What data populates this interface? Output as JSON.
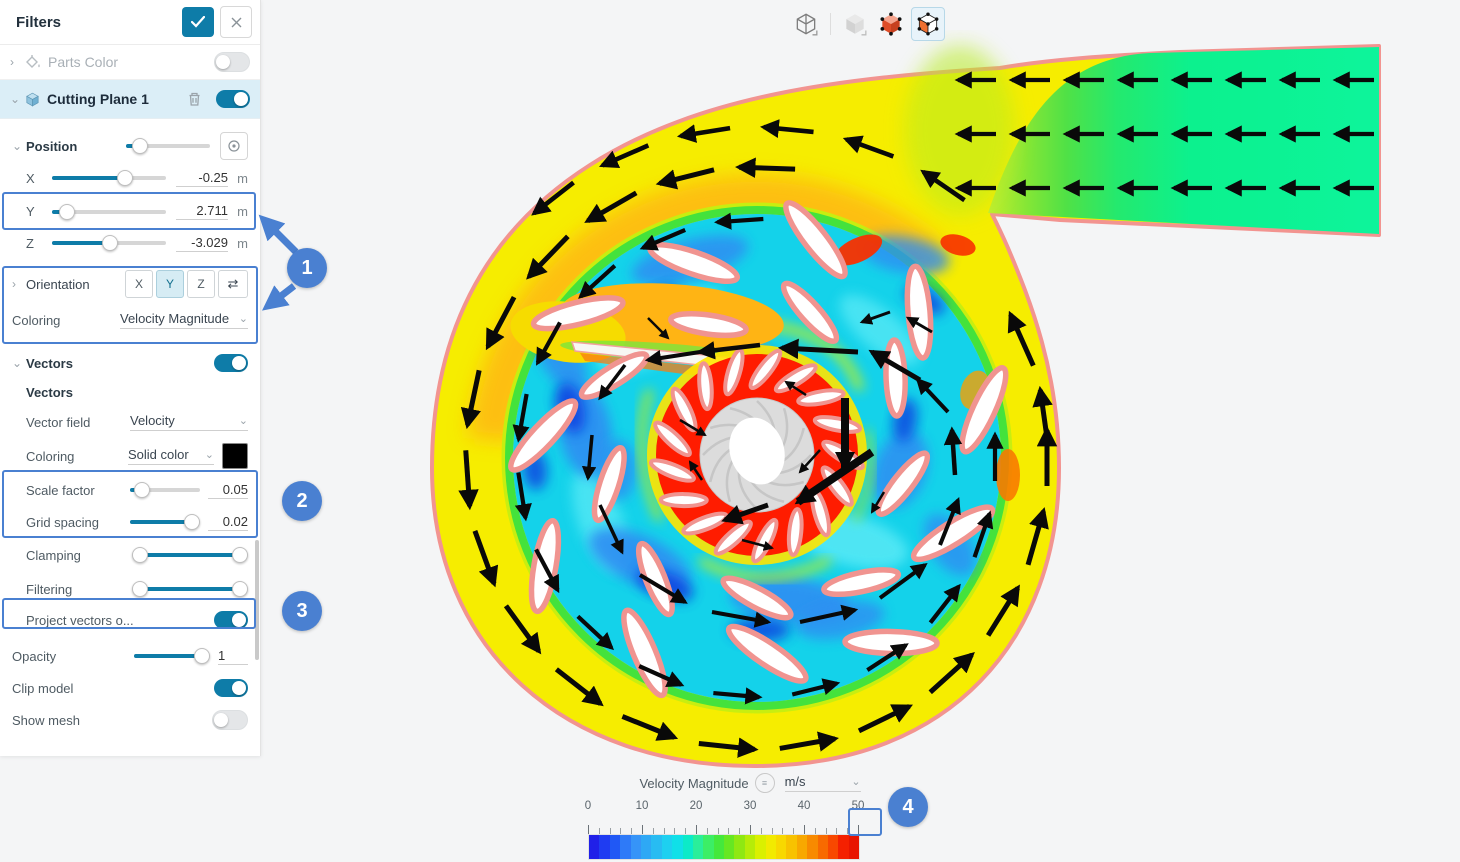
{
  "panel": {
    "title": "Filters",
    "parts_color": {
      "label": "Parts Color"
    },
    "cutting_plane": {
      "label": "Cutting Plane 1"
    },
    "position": {
      "label": "Position",
      "axes": [
        {
          "axis": "X",
          "value": "-0.25",
          "unit": "m"
        },
        {
          "axis": "Y",
          "value": "2.711",
          "unit": "m"
        },
        {
          "axis": "Z",
          "value": "-3.029",
          "unit": "m"
        }
      ]
    },
    "orientation": {
      "label": "Orientation",
      "axis_buttons": [
        "X",
        "Y",
        "Z"
      ],
      "selected_axis": "Y"
    },
    "plane_coloring": {
      "label": "Coloring",
      "value": "Velocity Magnitude"
    },
    "vectors": {
      "section_label": "Vectors",
      "group_label": "Vectors",
      "vector_field": {
        "label": "Vector field",
        "value": "Velocity"
      },
      "coloring": {
        "label": "Coloring",
        "value": "Solid color",
        "swatch_color": "#000000"
      },
      "scale_factor": {
        "label": "Scale factor",
        "value": "0.05"
      },
      "grid_spacing": {
        "label": "Grid spacing",
        "value": "0.02"
      },
      "clamping": {
        "label": "Clamping"
      },
      "filtering": {
        "label": "Filtering"
      },
      "project_vectors": {
        "label": "Project vectors o..."
      }
    },
    "opacity": {
      "label": "Opacity",
      "value": "1"
    },
    "clip_model": {
      "label": "Clip model"
    },
    "show_mesh": {
      "label": "Show mesh"
    }
  },
  "toolbar": {
    "icons": [
      "wireframe-cube",
      "solid-cube",
      "shaded-cube-vertices",
      "shaded-cube-faces-selected"
    ]
  },
  "legend": {
    "title": "Velocity Magnitude",
    "unit": "m/s",
    "tick_labels": [
      "0",
      "10",
      "20",
      "30",
      "40",
      "50"
    ],
    "colors": [
      "#2020e8",
      "#1f3cf2",
      "#2058f5",
      "#2e7af8",
      "#3694f8",
      "#2ea8f5",
      "#28bcf2",
      "#1ed0f0",
      "#10e0e8",
      "#0ceac8",
      "#2aee9a",
      "#3cee66",
      "#44e83c",
      "#66e722",
      "#8fe812",
      "#b6ec08",
      "#daf000",
      "#f2ea00",
      "#f8d800",
      "#f8c200",
      "#f8a800",
      "#f88a00",
      "#f86a00",
      "#f84800",
      "#f42000",
      "#e81400"
    ]
  },
  "annotations": {
    "badges": [
      "1",
      "2",
      "3",
      "4"
    ],
    "color": "#4a80d1"
  },
  "colors": {
    "accent": "#0e7ca8",
    "selected_row_bg": "#dbeef7",
    "annotation_blue": "#4a80d1",
    "outline_pink": "#f29490"
  }
}
